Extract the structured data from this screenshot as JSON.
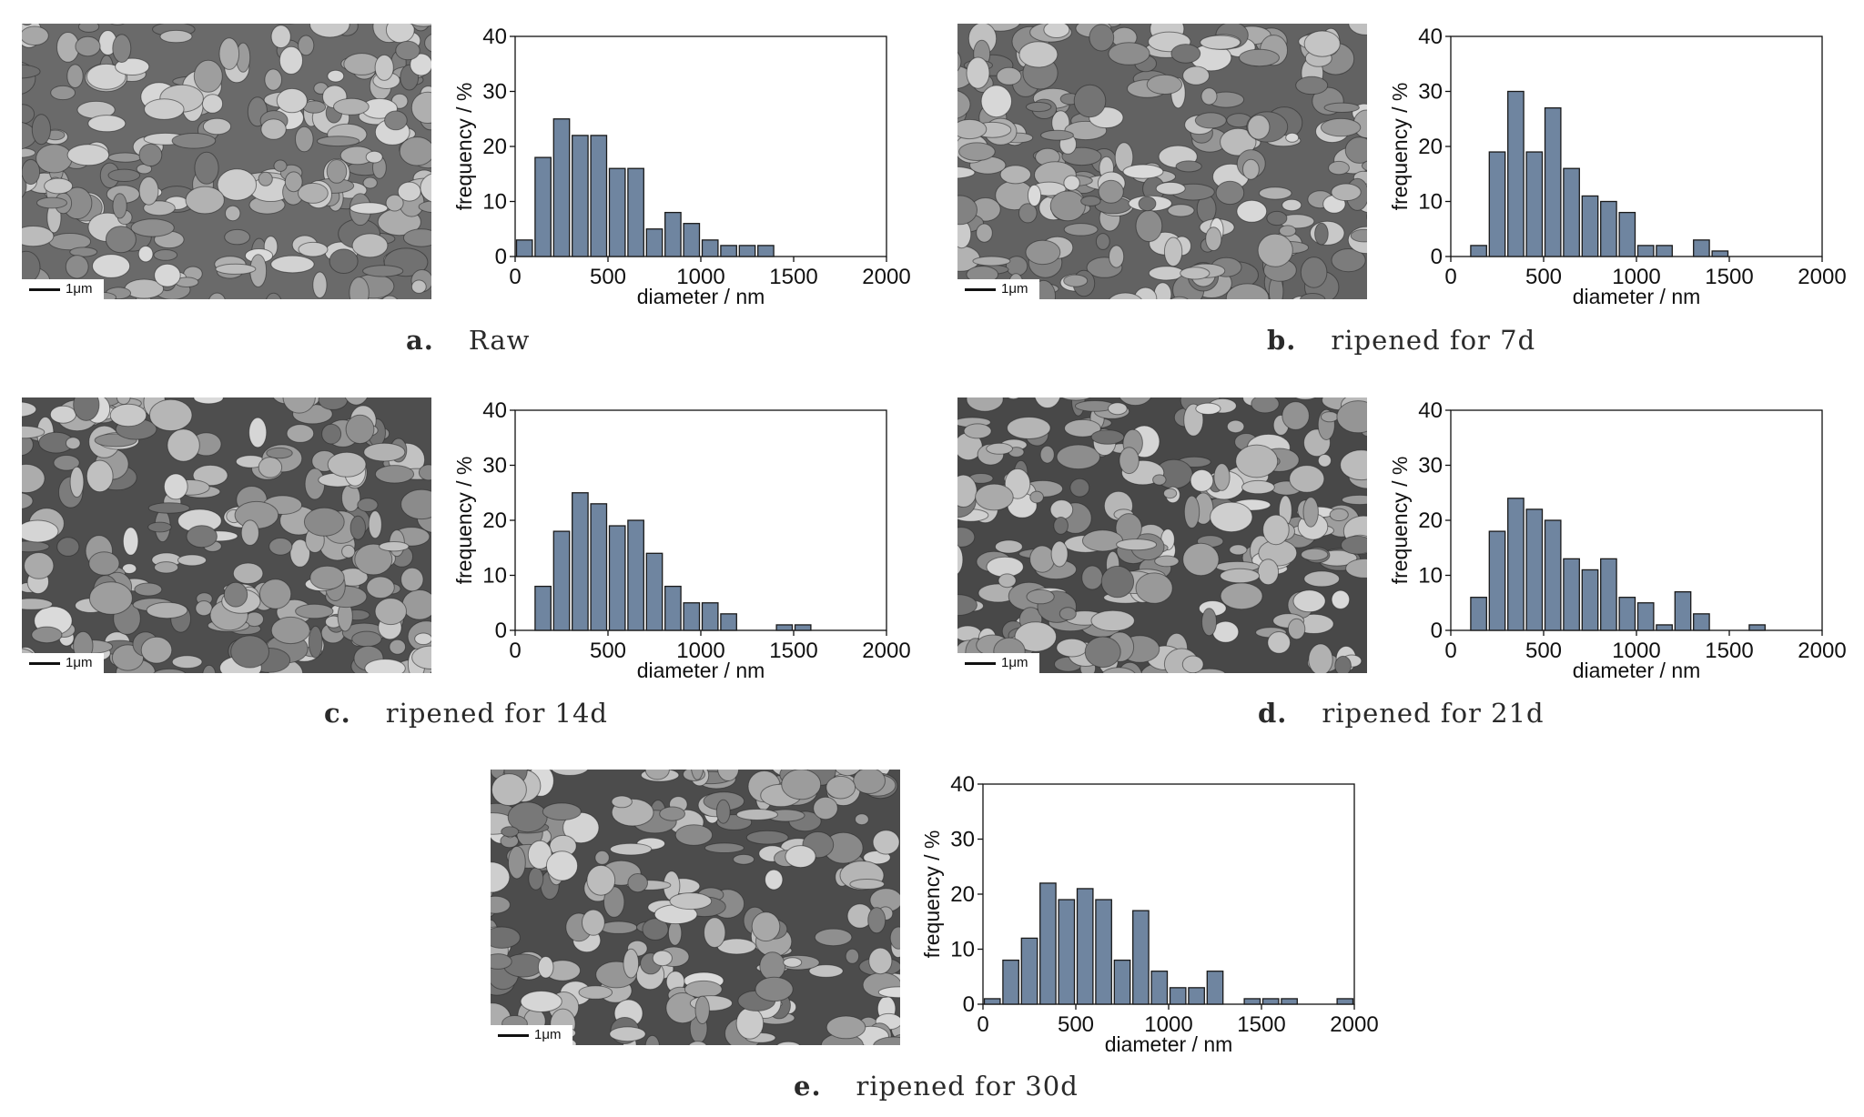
{
  "scale_label": "1μm",
  "bar_color": "#6f85a0",
  "panels": [
    {
      "letter": "a.",
      "caption": "Raw"
    },
    {
      "letter": "b.",
      "caption": "ripened for 7d"
    },
    {
      "letter": "c.",
      "caption": "ripened for 14d"
    },
    {
      "letter": "d.",
      "caption": "ripened for 21d"
    },
    {
      "letter": "e.",
      "caption": "ripened for 30d"
    }
  ],
  "chart_data": [
    {
      "type": "bar",
      "xlabel": "diameter / nm",
      "ylabel": "frequency / %",
      "xlim": [
        0,
        2000
      ],
      "ylim": [
        0,
        40
      ],
      "xticks": [
        0,
        500,
        1000,
        1500,
        2000
      ],
      "yticks": [
        0,
        10,
        20,
        30,
        40
      ],
      "bin_width": 100,
      "x": [
        50,
        150,
        250,
        350,
        450,
        550,
        650,
        750,
        850,
        950,
        1050,
        1150,
        1250,
        1350
      ],
      "values": [
        3,
        18,
        25,
        22,
        22,
        16,
        16,
        5,
        8,
        6,
        3,
        2,
        2,
        2
      ]
    },
    {
      "type": "bar",
      "xlabel": "diameter / nm",
      "ylabel": "frequency / %",
      "xlim": [
        0,
        2000
      ],
      "ylim": [
        0,
        40
      ],
      "xticks": [
        0,
        500,
        1000,
        1500,
        2000
      ],
      "yticks": [
        0,
        10,
        20,
        30,
        40
      ],
      "bin_width": 100,
      "x": [
        150,
        250,
        350,
        450,
        550,
        650,
        750,
        850,
        950,
        1050,
        1150,
        1350,
        1450
      ],
      "values": [
        2,
        19,
        30,
        19,
        27,
        16,
        11,
        10,
        8,
        2,
        2,
        3,
        1
      ]
    },
    {
      "type": "bar",
      "xlabel": "diameter / nm",
      "ylabel": "frequency / %",
      "xlim": [
        0,
        2000
      ],
      "ylim": [
        0,
        40
      ],
      "xticks": [
        0,
        500,
        1000,
        1500,
        2000
      ],
      "yticks": [
        0,
        10,
        20,
        30,
        40
      ],
      "bin_width": 100,
      "x": [
        150,
        250,
        350,
        450,
        550,
        650,
        750,
        850,
        950,
        1050,
        1150,
        1450,
        1550
      ],
      "values": [
        8,
        18,
        25,
        23,
        19,
        20,
        14,
        8,
        5,
        5,
        3,
        1,
        1
      ]
    },
    {
      "type": "bar",
      "xlabel": "diameter / nm",
      "ylabel": "frequency / %",
      "xlim": [
        0,
        2000
      ],
      "ylim": [
        0,
        40
      ],
      "xticks": [
        0,
        500,
        1000,
        1500,
        2000
      ],
      "yticks": [
        0,
        10,
        20,
        30,
        40
      ],
      "bin_width": 100,
      "x": [
        150,
        250,
        350,
        450,
        550,
        650,
        750,
        850,
        950,
        1050,
        1150,
        1250,
        1350,
        1650
      ],
      "values": [
        6,
        18,
        24,
        22,
        20,
        13,
        11,
        13,
        6,
        5,
        1,
        7,
        3,
        1
      ]
    },
    {
      "type": "bar",
      "xlabel": "diameter / nm",
      "ylabel": "frequency / %",
      "xlim": [
        0,
        2000
      ],
      "ylim": [
        0,
        40
      ],
      "xticks": [
        0,
        500,
        1000,
        1500,
        2000
      ],
      "yticks": [
        0,
        10,
        20,
        30,
        40
      ],
      "bin_width": 100,
      "x": [
        50,
        150,
        250,
        350,
        450,
        550,
        650,
        750,
        850,
        950,
        1050,
        1150,
        1250,
        1450,
        1550,
        1650,
        1950
      ],
      "values": [
        1,
        8,
        12,
        22,
        19,
        21,
        19,
        8,
        17,
        6,
        3,
        3,
        6,
        1,
        1,
        1,
        1
      ]
    }
  ]
}
